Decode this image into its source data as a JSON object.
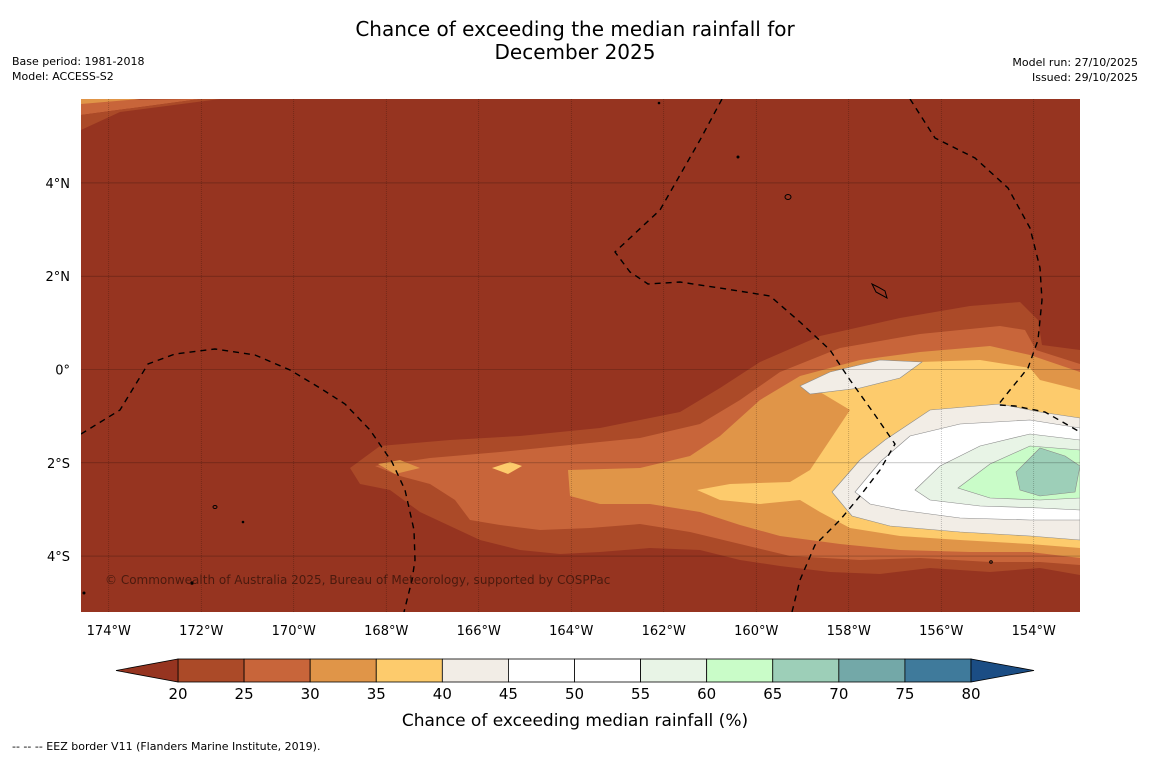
{
  "title_line1": "Chance of exceeding the median rainfall for",
  "title_line2": "December 2025",
  "base_period": "Base period: 1981-2018",
  "model": "Model: ACCESS-S2",
  "model_run": "Model run: 27/10/2025",
  "issued": "Issued: 29/10/2025",
  "copyright": "© Commonwealth of Australia 2025, Bureau of Meteorology, supported by COSPPac",
  "footer_note": "--  --  -- EEZ border V11 (Flanders Marine Institute, 2019).",
  "map_extent": {
    "lon_min": -174.6,
    "lon_max": -153.0,
    "lat_min": -5.2,
    "lat_max": 5.8
  },
  "lon_ticks": [
    "174°W",
    "172°W",
    "170°W",
    "168°W",
    "166°W",
    "164°W",
    "162°W",
    "160°W",
    "158°W",
    "156°W",
    "154°W"
  ],
  "lat_ticks": [
    "4°N",
    "2°N",
    "0°",
    "2°S",
    "4°S"
  ],
  "colorbar": {
    "title": "Chance of exceeding median rainfall (%)",
    "levels": [
      20,
      25,
      30,
      35,
      40,
      45,
      50,
      55,
      60,
      65,
      70,
      75,
      80
    ],
    "level_labels": [
      "20",
      "25",
      "30",
      "35",
      "40",
      "45",
      "50",
      "55",
      "60",
      "65",
      "70",
      "75",
      "80"
    ],
    "colors": [
      "#ab4a28",
      "#c8653a",
      "#e09548",
      "#fdcb6c",
      "#f2ede6",
      "#ffffff",
      "#ffffff",
      "#e8f4e6",
      "#c9fcc8",
      "#9dcfb8",
      "#73a8a8",
      "#3f7a9b"
    ],
    "under_color": "#963420",
    "over_color": "#1b4d84"
  },
  "colors": {
    "base": "#963420",
    "c25": "#ab4a28",
    "c30": "#c8653a",
    "c35": "#e09548",
    "c40": "#fdcb6c",
    "c45": "#f2ede6",
    "c50": "#ffffff",
    "c60": "#e8f4e6",
    "c65": "#c9fcc8",
    "c70": "#9dcfb8"
  }
}
